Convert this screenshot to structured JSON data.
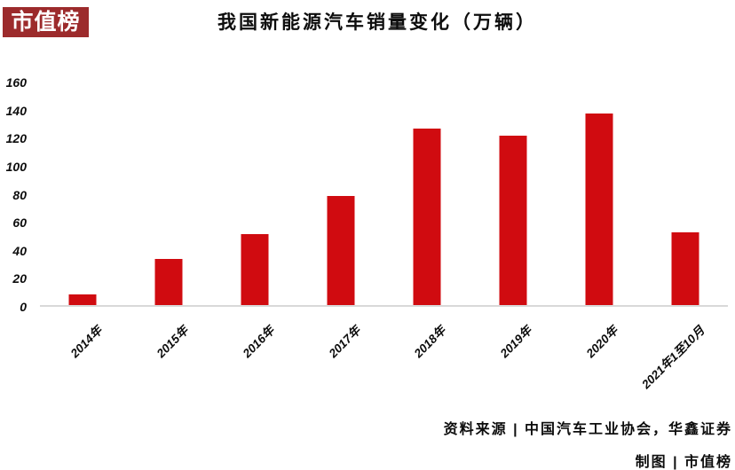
{
  "logo": {
    "text": "市值榜",
    "bg_color": "#9c2b2c",
    "text_color": "#ffffff"
  },
  "header": {
    "title": "我国新能源汽车销量变化（万辆）"
  },
  "chart_data": {
    "type": "bar",
    "title": "我国新能源汽车销量变化（万辆）",
    "categories": [
      "2014年",
      "2015年",
      "2016年",
      "2017年",
      "2018年",
      "2019年",
      "2020年",
      "2021年1至10月"
    ],
    "values": [
      7.5,
      33.1,
      50.7,
      77.7,
      125.6,
      120.6,
      136.7,
      52
    ],
    "xlabel": "",
    "ylabel": "",
    "ylim": [
      0,
      160
    ],
    "yticks": [
      0,
      20,
      40,
      60,
      80,
      100,
      120,
      140,
      160
    ],
    "bar_color": "#d00b10",
    "axis_line_color": "#d9d9d9",
    "grid": false,
    "legend": false
  },
  "footer": {
    "source": "资料来源 | 中国汽车工业协会，华鑫证券",
    "credit": "制图 | 市值榜"
  }
}
